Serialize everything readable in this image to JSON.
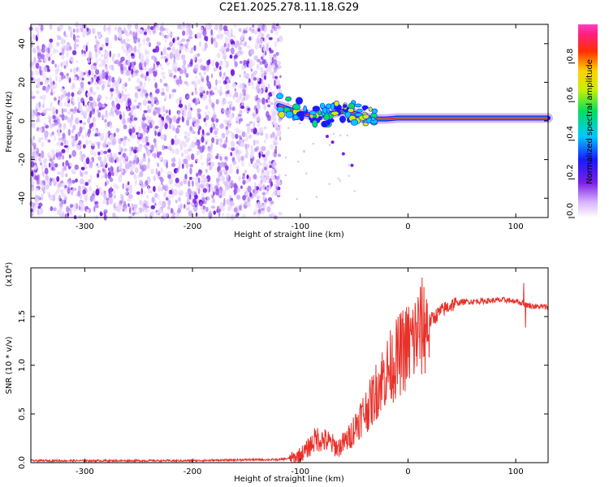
{
  "title": "C2E1.2025.278.11.18.G29",
  "colors": {
    "spectrogram_purple": "#7a1fe6",
    "track_red": "#ff1a1a",
    "snr_line": "#e8312a",
    "frame": "#000000"
  },
  "colorbar": {
    "label": "Normalized spectral amplitude",
    "ticks": [
      "0.0",
      "0.2",
      "0.4",
      "0.6",
      "0.8"
    ],
    "range": [
      0,
      1
    ]
  },
  "chart_data": [
    {
      "type": "heatmap",
      "title": "C2E1.2025.278.11.18.G29",
      "xlabel": "Height of straight line (km)",
      "ylabel": "Frequency (Hz)",
      "xlim": [
        -350,
        130
      ],
      "ylim": [
        -50,
        50
      ],
      "xticks": [
        "-300",
        "-200",
        "-100",
        "0",
        "100"
      ],
      "yticks": [
        "-40",
        "-20",
        "0",
        "20",
        "40"
      ],
      "noise_region_x": [
        -350,
        -118
      ],
      "signal_track": {
        "x": [
          -120,
          -110,
          -100,
          -90,
          -80,
          -70,
          -60,
          -50,
          -40,
          -30,
          -20,
          -10,
          0,
          10,
          20,
          40,
          60,
          80,
          100,
          130
        ],
        "freq": [
          8,
          6,
          4,
          3,
          3,
          4,
          5,
          4,
          2,
          1,
          1,
          1.5,
          1.5,
          1.5,
          1.5,
          1.5,
          1.5,
          1.5,
          1.5,
          1.5
        ]
      }
    },
    {
      "type": "line",
      "xlabel": "Height of straight line (km)",
      "ylabel": "SNR (10 * v/v)",
      "y_multiplier": "(x10⁴)",
      "xlim": [
        -350,
        130
      ],
      "ylim": [
        0,
        2.0
      ],
      "xticks": [
        "-300",
        "-200",
        "-100",
        "0",
        "100"
      ],
      "yticks": [
        "0.0",
        "0.5",
        "1.0",
        "1.5"
      ],
      "series": [
        {
          "name": "SNR",
          "x": [
            -350,
            -300,
            -250,
            -200,
            -150,
            -120,
            -105,
            -95,
            -85,
            -75,
            -65,
            -55,
            -45,
            -35,
            -25,
            -15,
            -5,
            0,
            5,
            10,
            20,
            30,
            40,
            50,
            70,
            90,
            100,
            110,
            120,
            130
          ],
          "values": [
            0.02,
            0.02,
            0.02,
            0.02,
            0.03,
            0.03,
            0.05,
            0.12,
            0.25,
            0.22,
            0.15,
            0.25,
            0.45,
            0.6,
            0.85,
            1.0,
            1.15,
            1.2,
            1.25,
            1.35,
            1.45,
            1.55,
            1.62,
            1.65,
            1.66,
            1.67,
            1.66,
            1.62,
            1.6,
            1.6
          ]
        }
      ]
    }
  ]
}
